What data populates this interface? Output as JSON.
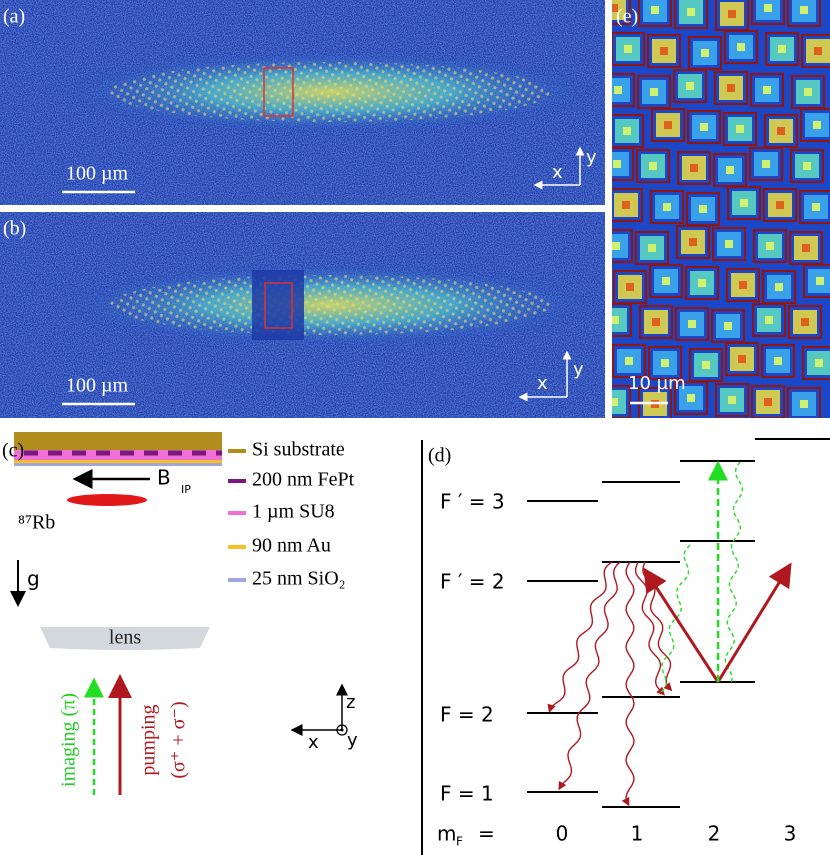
{
  "panel_a": {
    "label": "(a)",
    "scale_bar": "100 µm",
    "axis_x": "x",
    "axis_y": "y"
  },
  "panel_b": {
    "label": "(b)",
    "scale_bar": "100 µm",
    "axis_x": "x",
    "axis_y": "y"
  },
  "panel_e": {
    "label": "(e)",
    "scale_bar": "10 µm"
  },
  "panel_c": {
    "label": "(c)",
    "layers": [
      "Si substrate",
      "200 nm FePt",
      "1 µm SU8",
      "90 nm Au",
      "25 nm SiO₂"
    ],
    "field": "B",
    "field_sub": "IP",
    "atom": "⁸⁷Rb",
    "gravity": "g",
    "lens": "lens",
    "imaging": "imaging (π)",
    "pumping": "pumping",
    "pumping_pol": "(σ⁺ + σ⁻)",
    "axis_z": "z",
    "axis_x": "x",
    "axis_y": "y"
  },
  "panel_d": {
    "label": "(d)",
    "levels": [
      "F ′ = 3",
      "F ′ = 2",
      "F  = 2",
      "F  = 1"
    ],
    "mf_label": "m",
    "mf_sub": "F",
    "mf_eq": "=",
    "mf_values": [
      "0",
      "1",
      "2",
      "3"
    ]
  }
}
